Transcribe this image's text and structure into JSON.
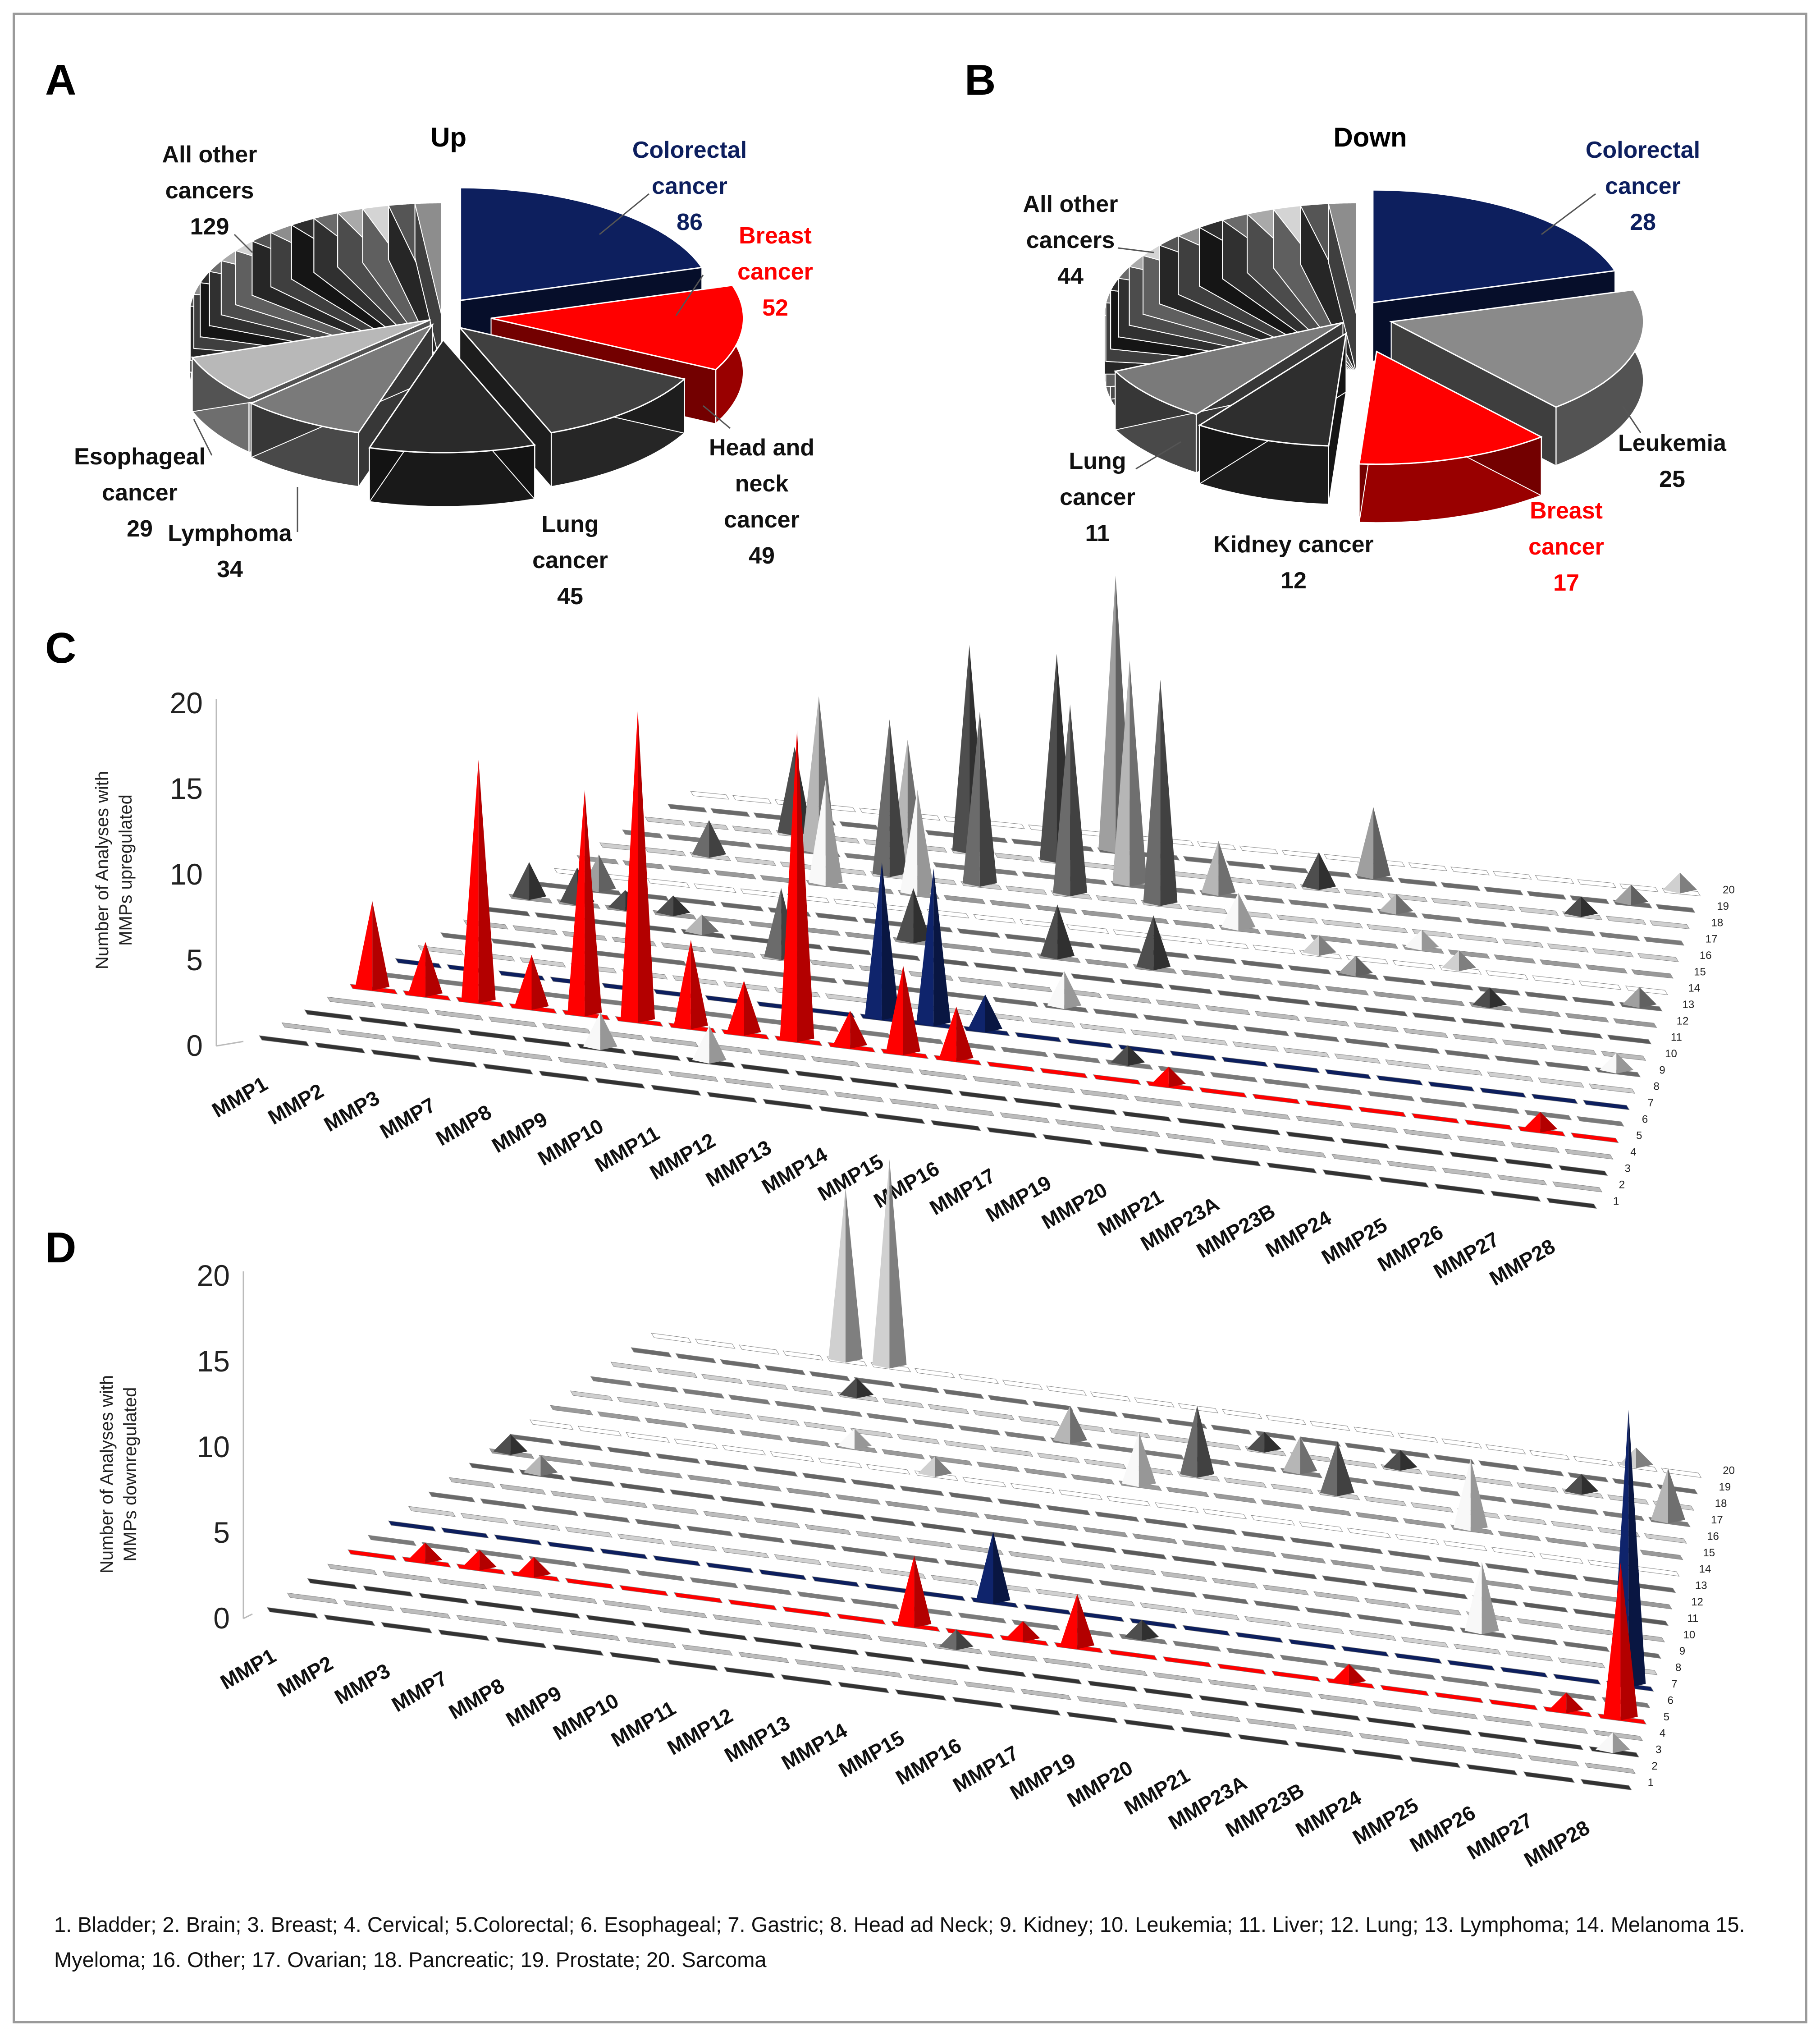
{
  "colors": {
    "colorectal": "#0d1f5e",
    "breast": "#ff0000",
    "dark": "#3a3a3a",
    "mid": "#7a7a7a",
    "light": "#bdbdbd",
    "lighter": "#dedede"
  },
  "panels": {
    "a": "A",
    "b": "B",
    "c": "C",
    "d": "D"
  },
  "chart_data": [
    {
      "type": "pie",
      "panel": "A",
      "title": "Up",
      "slices": [
        {
          "name": "Colorectal cancer",
          "value": 86,
          "color": "#0d1f5e",
          "label_lines": [
            "Colorectal",
            "cancer",
            "86"
          ]
        },
        {
          "name": "Breast cancer",
          "value": 52,
          "color": "#ff0000",
          "label_lines": [
            "Breast",
            "cancer",
            "52"
          ]
        },
        {
          "name": "Head and neck cancer",
          "value": 49,
          "color": "#404040",
          "label_lines": [
            "Head and",
            "neck",
            "cancer",
            "49"
          ]
        },
        {
          "name": "Lung cancer",
          "value": 45,
          "color": "#2a2a2a",
          "label_lines": [
            "Lung",
            "cancer",
            "45"
          ]
        },
        {
          "name": "Lymphoma",
          "value": 34,
          "color": "#7a7a7a",
          "label_lines": [
            "Lymphoma",
            "34"
          ]
        },
        {
          "name": "Esophageal cancer",
          "value": 29,
          "color": "#b8b8b8",
          "label_lines": [
            "Esophageal",
            "cancer",
            "29"
          ]
        },
        {
          "name": "All other cancers",
          "value": 129,
          "color": "#888888",
          "label_lines": [
            "All other",
            "cancers",
            "129"
          ]
        }
      ]
    },
    {
      "type": "pie",
      "panel": "B",
      "title": "Down",
      "slices": [
        {
          "name": "Colorectal cancer",
          "value": 28,
          "color": "#0d1f5e",
          "label_lines": [
            "Colorectal",
            "cancer",
            "28"
          ]
        },
        {
          "name": "Leukemia",
          "value": 25,
          "color": "#8a8a8a",
          "label_lines": [
            "Leukemia",
            "25"
          ]
        },
        {
          "name": "Breast cancer",
          "value": 17,
          "color": "#ff0000",
          "label_lines": [
            "Breast",
            "cancer",
            "17"
          ]
        },
        {
          "name": "Kidney cancer",
          "value": 12,
          "color": "#2e2e2e",
          "label_lines": [
            "Kidney cancer",
            "12"
          ]
        },
        {
          "name": "Lung cancer",
          "value": 11,
          "color": "#7a7a7a",
          "label_lines": [
            "Lung",
            "cancer",
            "11"
          ]
        },
        {
          "name": "All other cancers",
          "value": 44,
          "color": "#9a9a9a",
          "label_lines": [
            "All other",
            "cancers",
            "44"
          ]
        }
      ]
    },
    {
      "type": "bar",
      "style": "3d-cone",
      "panel": "C",
      "ylabel": "Number of Analyses with MMPs upregulated",
      "ylim": [
        0,
        20
      ],
      "yticks": [
        0,
        5,
        10,
        15,
        20
      ],
      "categories": [
        "MMP1",
        "MMP2",
        "MMP3",
        "MMP7",
        "MMP8",
        "MMP9",
        "MMP10",
        "MMP11",
        "MMP12",
        "MMP13",
        "MMP14",
        "MMP15",
        "MMP16",
        "MMP17",
        "MMP19",
        "MMP20",
        "MMP21",
        "MMP23A",
        "MMP23B",
        "MMP24",
        "MMP25",
        "MMP26",
        "MMP27",
        "MMP28"
      ],
      "rows": [
        "1",
        "2",
        "3",
        "4",
        "5",
        "6",
        "7",
        "8",
        "9",
        "10",
        "11",
        "12",
        "13",
        "14",
        "15",
        "16",
        "17",
        "18",
        "19",
        "20"
      ],
      "points": [
        {
          "cat": "MMP1",
          "row": 12,
          "value": 2
        },
        {
          "cat": "MMP1",
          "row": 5,
          "value": 5
        },
        {
          "cat": "MMP2",
          "row": 13,
          "value": 2
        },
        {
          "cat": "MMP2",
          "row": 5,
          "value": 3
        },
        {
          "cat": "MMP2",
          "row": 12,
          "value": 2
        },
        {
          "cat": "MMP3",
          "row": 5,
          "value": 14
        },
        {
          "cat": "MMP3",
          "row": 16,
          "value": 2
        },
        {
          "cat": "MMP3",
          "row": 12,
          "value": 1
        },
        {
          "cat": "MMP7",
          "row": 5,
          "value": 3
        },
        {
          "cat": "MMP7",
          "row": 18,
          "value": 5
        },
        {
          "cat": "MMP7",
          "row": 12,
          "value": 1
        },
        {
          "cat": "MMP8",
          "row": 5,
          "value": 13
        },
        {
          "cat": "MMP8",
          "row": 17,
          "value": 9
        },
        {
          "cat": "MMP8",
          "row": 11,
          "value": 1
        },
        {
          "cat": "MMP9",
          "row": 5,
          "value": 18
        },
        {
          "cat": "MMP9",
          "row": 15,
          "value": 6
        },
        {
          "cat": "MMP9",
          "row": 3,
          "value": 2
        },
        {
          "cat": "MMP10",
          "row": 5,
          "value": 5
        },
        {
          "cat": "MMP10",
          "row": 16,
          "value": 9
        },
        {
          "cat": "MMP10",
          "row": 17,
          "value": 7
        },
        {
          "cat": "MMP10",
          "row": 10,
          "value": 4
        },
        {
          "cat": "MMP11",
          "row": 5,
          "value": 3
        },
        {
          "cat": "MMP11",
          "row": 18,
          "value": 12
        },
        {
          "cat": "MMP11",
          "row": 15,
          "value": 6
        },
        {
          "cat": "MMP11",
          "row": 3,
          "value": 2
        },
        {
          "cat": "MMP12",
          "row": 5,
          "value": 18
        },
        {
          "cat": "MMP12",
          "row": 16,
          "value": 10
        },
        {
          "cat": "MMP12",
          "row": 12,
          "value": 3
        },
        {
          "cat": "MMP13",
          "row": 7,
          "value": 9
        },
        {
          "cat": "MMP13",
          "row": 18,
          "value": 12
        },
        {
          "cat": "MMP13",
          "row": 5,
          "value": 2
        },
        {
          "cat": "MMP14",
          "row": 5,
          "value": 5
        },
        {
          "cat": "MMP14",
          "row": 7,
          "value": 9
        },
        {
          "cat": "MMP14",
          "row": 19,
          "value": 16
        },
        {
          "cat": "MMP14",
          "row": 16,
          "value": 11
        },
        {
          "cat": "MMP15",
          "row": 5,
          "value": 3
        },
        {
          "cat": "MMP15",
          "row": 7,
          "value": 2
        },
        {
          "cat": "MMP15",
          "row": 17,
          "value": 13
        },
        {
          "cat": "MMP15",
          "row": 12,
          "value": 3
        },
        {
          "cat": "MMP16",
          "row": 16,
          "value": 13
        },
        {
          "cat": "MMP16",
          "row": 9,
          "value": 2
        },
        {
          "cat": "MMP17",
          "row": 17,
          "value": 3
        },
        {
          "cat": "MMP17",
          "row": 12,
          "value": 3
        },
        {
          "cat": "MMP19",
          "row": 15,
          "value": 2
        },
        {
          "cat": "MMP19",
          "row": 6,
          "value": 1
        },
        {
          "cat": "MMP20",
          "row": 18,
          "value": 2
        },
        {
          "cat": "MMP20",
          "row": 5,
          "value": 1
        },
        {
          "cat": "MMP21",
          "row": 19,
          "value": 4
        },
        {
          "cat": "MMP21",
          "row": 14,
          "value": 1
        },
        {
          "cat": "MMP23A",
          "row": 17,
          "value": 1
        },
        {
          "cat": "MMP23A",
          "row": 13,
          "value": 1
        },
        {
          "cat": "MMP23B",
          "row": 15,
          "value": 1
        },
        {
          "cat": "MMP24",
          "row": 14,
          "value": 1
        },
        {
          "cat": "MMP25",
          "row": 12,
          "value": 1
        },
        {
          "cat": "MMP26",
          "row": 18,
          "value": 1
        },
        {
          "cat": "MMP27",
          "row": 19,
          "value": 1
        },
        {
          "cat": "MMP27",
          "row": 5,
          "value": 1
        },
        {
          "cat": "MMP28",
          "row": 20,
          "value": 1
        },
        {
          "cat": "MMP28",
          "row": 13,
          "value": 1
        },
        {
          "cat": "MMP28",
          "row": 9,
          "value": 1
        }
      ]
    },
    {
      "type": "bar",
      "style": "3d-cone",
      "panel": "D",
      "ylabel": "Number of Analyses with MMPs downregulated",
      "ylim": [
        0,
        20
      ],
      "yticks": [
        0,
        5,
        10,
        15,
        20
      ],
      "categories": [
        "MMP1",
        "MMP2",
        "MMP3",
        "MMP7",
        "MMP8",
        "MMP9",
        "MMP10",
        "MMP11",
        "MMP12",
        "MMP13",
        "MMP14",
        "MMP15",
        "MMP16",
        "MMP17",
        "MMP19",
        "MMP20",
        "MMP21",
        "MMP23A",
        "MMP23B",
        "MMP24",
        "MMP25",
        "MMP26",
        "MMP27",
        "MMP28"
      ],
      "rows": [
        "1",
        "2",
        "3",
        "4",
        "5",
        "6",
        "7",
        "8",
        "9",
        "10",
        "11",
        "12",
        "13",
        "14",
        "15",
        "16",
        "17",
        "18",
        "19",
        "20"
      ],
      "points": [
        {
          "cat": "MMP1",
          "row": 12,
          "value": 1
        },
        {
          "cat": "MMP2",
          "row": 11,
          "value": 1
        },
        {
          "cat": "MMP2",
          "row": 5,
          "value": 1
        },
        {
          "cat": "MMP3",
          "row": 5,
          "value": 1
        },
        {
          "cat": "MMP7",
          "row": 5,
          "value": 1
        },
        {
          "cat": "MMP8",
          "row": 20,
          "value": 10
        },
        {
          "cat": "MMP9",
          "row": 20,
          "value": 12
        },
        {
          "cat": "MMP9",
          "row": 18,
          "value": 1
        },
        {
          "cat": "MMP10",
          "row": 15,
          "value": 1
        },
        {
          "cat": "MMP12",
          "row": 14,
          "value": 1
        },
        {
          "cat": "MMP14",
          "row": 5,
          "value": 4
        },
        {
          "cat": "MMP14",
          "row": 17,
          "value": 2
        },
        {
          "cat": "MMP15",
          "row": 7,
          "value": 4
        },
        {
          "cat": "MMP15",
          "row": 4,
          "value": 1
        },
        {
          "cat": "MMP16",
          "row": 5,
          "value": 1
        },
        {
          "cat": "MMP16",
          "row": 15,
          "value": 3
        },
        {
          "cat": "MMP17",
          "row": 5,
          "value": 3
        },
        {
          "cat": "MMP17",
          "row": 16,
          "value": 4
        },
        {
          "cat": "MMP19",
          "row": 6,
          "value": 1
        },
        {
          "cat": "MMP19",
          "row": 18,
          "value": 1
        },
        {
          "cat": "MMP20",
          "row": 17,
          "value": 2
        },
        {
          "cat": "MMP21",
          "row": 16,
          "value": 3
        },
        {
          "cat": "MMP23A",
          "row": 18,
          "value": 1
        },
        {
          "cat": "MMP23B",
          "row": 5,
          "value": 1
        },
        {
          "cat": "MMP24",
          "row": 15,
          "value": 4
        },
        {
          "cat": "MMP25",
          "row": 9,
          "value": 4
        },
        {
          "cat": "MMP26",
          "row": 18,
          "value": 1
        },
        {
          "cat": "MMP27",
          "row": 20,
          "value": 1
        },
        {
          "cat": "MMP27",
          "row": 5,
          "value": 1
        },
        {
          "cat": "MMP28",
          "row": 7,
          "value": 16
        },
        {
          "cat": "MMP28",
          "row": 5,
          "value": 9
        },
        {
          "cat": "MMP28",
          "row": 3,
          "value": 1
        },
        {
          "cat": "MMP28",
          "row": 17,
          "value": 3
        }
      ]
    }
  ],
  "legend": "1. Bladder; 2. Brain; 3. Breast; 4. Cervical; 5.Colorectal; 6. Esophageal; 7. Gastric; 8. Head ad Neck; 9. Kidney; 10. Leukemia; 11. Liver; 12. Lung; 13. Lymphoma; 14. Melanoma 15. Myeloma; 16. Other; 17. Ovarian; 18. Pancreatic; 19. Prostate; 20. Sarcoma"
}
